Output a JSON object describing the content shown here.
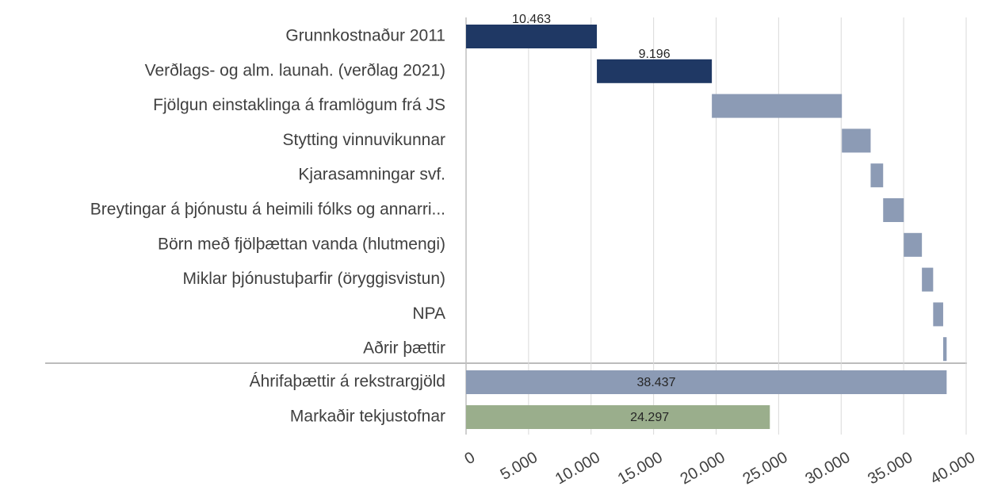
{
  "chart_data": {
    "type": "waterfall",
    "categories": [
      "Grunnkostnaður 2011",
      "Verðlags- og alm. launah. (verðlag 2021)",
      "Fjölgun einstaklinga á framlögum frá JS",
      "Stytting vinnuvikunnar",
      "Kjarasamningar svf.",
      "Breytingar á þjónustu á heimili fólks og annarri...",
      "Börn með fjölþættan vanda (hlutmengi)",
      "Miklar þjónustuþarfir (öryggisvistun)",
      "NPA",
      "Aðrir þættir"
    ],
    "values": [
      10463,
      9196,
      10400,
      2300,
      1000,
      1650,
      1450,
      900,
      800,
      278
    ],
    "value_labels": [
      "10.463",
      "9.196",
      null,
      null,
      null,
      null,
      null,
      null,
      null,
      null
    ],
    "colors": [
      "#1f3864",
      "#1f3864",
      "#8c9bb5",
      "#8c9bb5",
      "#8c9bb5",
      "#8c9bb5",
      "#8c9bb5",
      "#8c9bb5",
      "#8c9bb5",
      "#8c9bb5"
    ],
    "totals": {
      "categories": [
        "Áhrifaþættir á rekstrargjöld",
        "Markaðir tekjustofnar"
      ],
      "values": [
        38437,
        24297
      ],
      "value_labels": [
        "38.437",
        "24.297"
      ],
      "colors": [
        "#8c9bb5",
        "#9aae8c"
      ]
    },
    "xlim": [
      0,
      40000
    ],
    "xticks": [
      0,
      {
        "value": 5000,
        "label": "5.000"
      },
      {
        "value": 10000,
        "label": "10.000"
      },
      {
        "value": 15000,
        "label": "15.000"
      },
      {
        "value": 20000,
        "label": "20.000"
      },
      {
        "value": 25000,
        "label": "25.000"
      },
      {
        "value": 30000,
        "label": "30.000"
      },
      {
        "value": 35000,
        "label": "35.000"
      },
      {
        "value": 40000,
        "label": "40.000"
      }
    ],
    "grid": true
  }
}
